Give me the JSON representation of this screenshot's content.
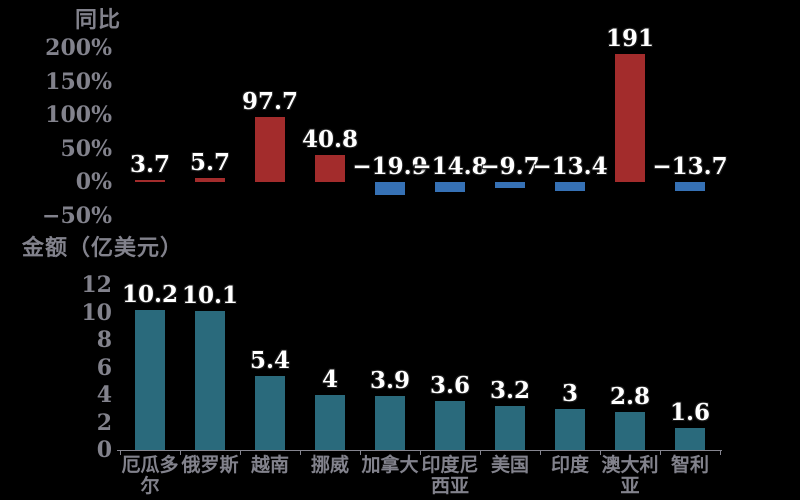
{
  "background": "#000000",
  "chart_data": [
    {
      "type": "bar",
      "title": "同比",
      "categories": [
        "厄瓜多尔",
        "俄罗斯",
        "越南",
        "挪威",
        "加拿大",
        "印度尼西亚",
        "美国",
        "印度",
        "澳大利亚",
        "智利"
      ],
      "values": [
        3.7,
        5.7,
        97.7,
        40.8,
        -19.9,
        -14.8,
        -9.7,
        -13.4,
        191,
        -13.7
      ],
      "value_labels": [
        "3.7",
        "5.7",
        "97.7",
        "40.8",
        "−19.9",
        "−14.8",
        "−9.7",
        "−13.4",
        "191",
        "−13.7"
      ],
      "unit": "%",
      "ylim": [
        -50,
        200
      ],
      "y_ticks": [
        200,
        150,
        100,
        50,
        0,
        -50
      ],
      "y_tick_labels": [
        "200%",
        "150%",
        "100%",
        "50%",
        "0%",
        "−50%"
      ],
      "positive_color": "#a32c2c",
      "negative_color": "#3671b5",
      "grid": false,
      "legend": "none",
      "x_axis_labels_shown": false
    },
    {
      "type": "bar",
      "title": "金额（亿美元）",
      "categories": [
        "厄瓜多尔",
        "俄罗斯",
        "越南",
        "挪威",
        "加拿大",
        "印度尼西亚",
        "美国",
        "印度",
        "澳大利亚",
        "智利"
      ],
      "x_tick_display": [
        "厄瓜多\n尔",
        "俄罗斯",
        "越南",
        "挪威",
        "加拿大",
        "印度尼\n西亚",
        "美国",
        "印度",
        "澳大利\n亚",
        "智利"
      ],
      "values": [
        10.2,
        10.1,
        5.4,
        4,
        3.9,
        3.6,
        3.2,
        3,
        2.8,
        1.6
      ],
      "value_labels": [
        "10.2",
        "10.1",
        "5.4",
        "4",
        "3.9",
        "3.6",
        "3.2",
        "3",
        "2.8",
        "1.6"
      ],
      "unit": "亿美元",
      "ylim": [
        0,
        12
      ],
      "y_ticks": [
        12,
        10,
        8,
        6,
        4,
        2,
        0
      ],
      "y_tick_labels": [
        "12",
        "10",
        "8",
        "6",
        "4",
        "2",
        "0"
      ],
      "bar_color": "#2a6a7c",
      "grid": false,
      "legend": "none",
      "x_axis_labels_shown": true
    }
  ],
  "colors": {
    "background": "#000000",
    "text_gray": "#82828c",
    "axis_line": "#85858f",
    "value_label": "#ffffff",
    "yoy_positive": "#a32c2c",
    "yoy_negative": "#3671b5",
    "amount_bar": "#2a6a7c"
  }
}
